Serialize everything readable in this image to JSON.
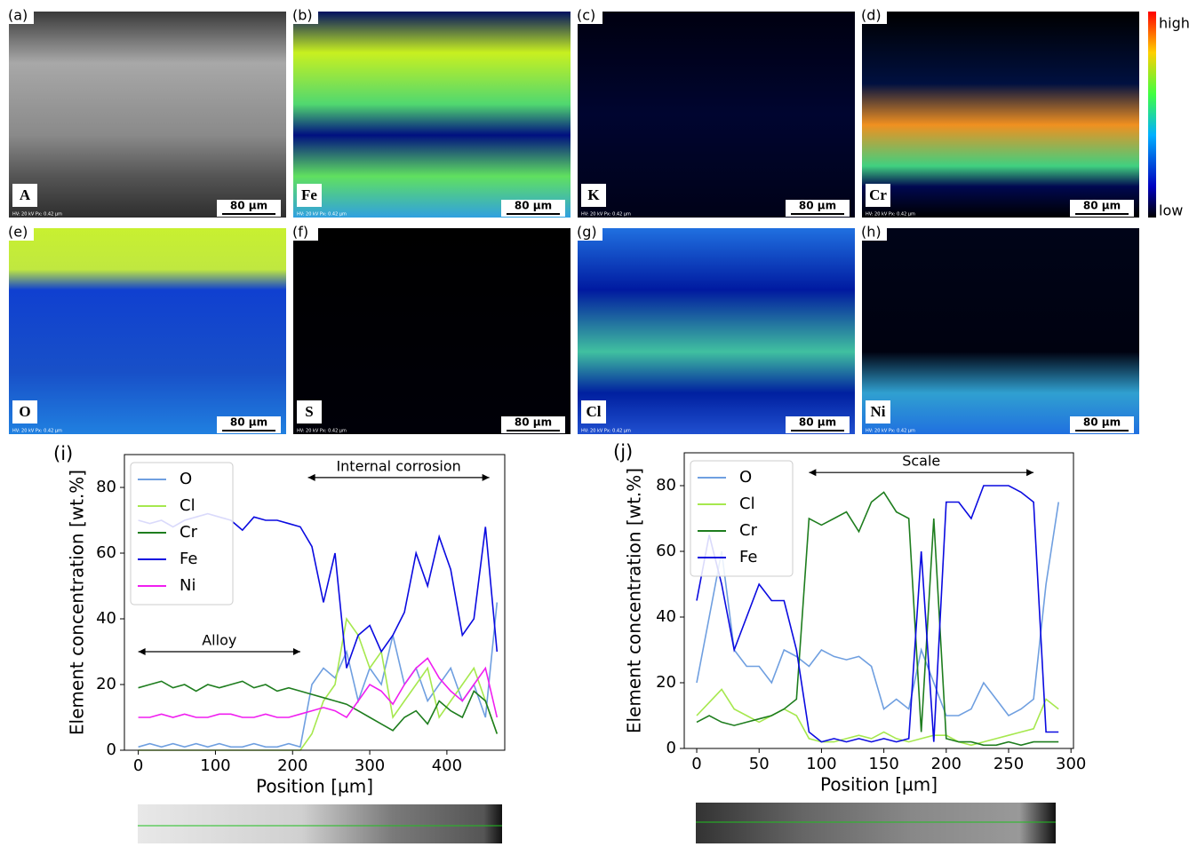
{
  "panels": [
    {
      "label": "(a)",
      "element": "A",
      "scale": "80 µm",
      "info": "HV: 20 kV   Px: 0.42 µm"
    },
    {
      "label": "(b)",
      "element": "Fe",
      "scale": "80 µm",
      "info": "HV: 20 kV   Px: 0.42 µm"
    },
    {
      "label": "(c)",
      "element": "K",
      "scale": "80 µm",
      "info": "HV: 20 kV   Px: 0.42 µm"
    },
    {
      "label": "(d)",
      "element": "Cr",
      "scale": "80 µm",
      "info": "HV: 20 kV   Px: 0.42 µm"
    },
    {
      "label": "(e)",
      "element": "O",
      "scale": "80 µm",
      "info": "HV: 20 kV   Px: 0.42 µm"
    },
    {
      "label": "(f)",
      "element": "S",
      "scale": "80 µm",
      "info": "HV: 20 kV   Px: 0.42 µm"
    },
    {
      "label": "(g)",
      "element": "Cl",
      "scale": "80 µm",
      "info": "HV: 20 kV   Px: 0.42 µm"
    },
    {
      "label": "(h)",
      "element": "Ni",
      "scale": "80 µm",
      "info": "HV: 20 kV   Px: 0.42 µm"
    }
  ],
  "colorbar": {
    "high": "high",
    "low": "low"
  },
  "chart_data": [
    {
      "type": "line",
      "panel_label": "(i)",
      "x_label": "Position [µm]",
      "y_label": "Element concentration [wt.%]",
      "x": [
        0,
        15,
        30,
        45,
        60,
        75,
        90,
        105,
        120,
        135,
        150,
        165,
        180,
        195,
        210,
        225,
        240,
        255,
        270,
        285,
        300,
        315,
        330,
        345,
        360,
        375,
        390,
        405,
        420,
        435,
        450,
        465
      ],
      "series": [
        {
          "name": "O",
          "color": "#6f9fe0",
          "values": [
            1,
            2,
            1,
            2,
            1,
            2,
            1,
            2,
            1,
            1,
            2,
            1,
            1,
            2,
            1,
            20,
            25,
            22,
            30,
            15,
            25,
            20,
            35,
            20,
            25,
            15,
            20,
            25,
            15,
            20,
            10,
            45
          ]
        },
        {
          "name": "Cl",
          "color": "#a6e84e",
          "values": [
            0,
            0,
            0,
            0,
            0,
            0,
            0,
            0,
            0,
            0,
            0,
            0,
            0,
            0,
            0,
            5,
            15,
            20,
            40,
            35,
            25,
            30,
            10,
            15,
            20,
            25,
            10,
            15,
            20,
            25,
            15,
            5
          ]
        },
        {
          "name": "Cr",
          "color": "#1e7d1e",
          "values": [
            19,
            20,
            21,
            19,
            20,
            18,
            20,
            19,
            20,
            21,
            19,
            20,
            18,
            19,
            18,
            17,
            16,
            15,
            14,
            12,
            10,
            8,
            6,
            10,
            12,
            8,
            15,
            12,
            10,
            18,
            15,
            5
          ]
        },
        {
          "name": "Fe",
          "color": "#0a0ae0",
          "values": [
            70,
            69,
            70,
            68,
            70,
            71,
            72,
            71,
            70,
            67,
            71,
            70,
            70,
            69,
            68,
            62,
            45,
            60,
            25,
            35,
            38,
            30,
            35,
            42,
            60,
            50,
            65,
            55,
            35,
            40,
            68,
            30
          ]
        },
        {
          "name": "Ni",
          "color": "#f01ef0",
          "values": [
            10,
            10,
            11,
            10,
            11,
            10,
            10,
            11,
            11,
            10,
            10,
            11,
            10,
            10,
            11,
            12,
            13,
            12,
            10,
            15,
            20,
            18,
            14,
            20,
            25,
            28,
            22,
            18,
            15,
            20,
            25,
            10
          ]
        }
      ],
      "xlim": [
        -18,
        475
      ],
      "ylim": [
        0,
        90
      ],
      "xticks": [
        0,
        100,
        200,
        300,
        400
      ],
      "yticks": [
        0,
        20,
        40,
        60,
        80
      ],
      "legend": "upper left",
      "annotations": [
        {
          "text": "Internal corrosion",
          "from": 220,
          "to": 455,
          "y": 83
        },
        {
          "text": "Alloy",
          "from": 0,
          "to": 210,
          "y": 30
        }
      ]
    },
    {
      "type": "line",
      "panel_label": "(j)",
      "x_label": "Position [µm]",
      "y_label": "Element concentration [wt.%]",
      "x": [
        0,
        10,
        20,
        30,
        40,
        50,
        60,
        70,
        80,
        90,
        100,
        110,
        120,
        130,
        140,
        150,
        160,
        170,
        180,
        190,
        200,
        210,
        220,
        230,
        240,
        250,
        260,
        270,
        280,
        290
      ],
      "series": [
        {
          "name": "O",
          "color": "#6f9fe0",
          "values": [
            20,
            40,
            60,
            30,
            25,
            25,
            20,
            30,
            28,
            25,
            30,
            28,
            27,
            28,
            25,
            12,
            15,
            12,
            30,
            20,
            10,
            10,
            12,
            20,
            15,
            10,
            12,
            15,
            50,
            75
          ]
        },
        {
          "name": "Cl",
          "color": "#a6e84e",
          "values": [
            10,
            14,
            18,
            12,
            10,
            8,
            10,
            12,
            10,
            3,
            2,
            2,
            3,
            4,
            3,
            5,
            3,
            2,
            3,
            4,
            4,
            2,
            1,
            2,
            3,
            4,
            5,
            6,
            15,
            12
          ]
        },
        {
          "name": "Cr",
          "color": "#1e7d1e",
          "values": [
            8,
            10,
            8,
            7,
            8,
            9,
            10,
            12,
            15,
            70,
            68,
            70,
            72,
            66,
            75,
            78,
            72,
            70,
            5,
            70,
            3,
            2,
            2,
            1,
            1,
            2,
            1,
            2,
            2,
            2
          ]
        },
        {
          "name": "Fe",
          "color": "#0a0ae0",
          "values": [
            45,
            65,
            50,
            30,
            40,
            50,
            45,
            45,
            30,
            5,
            2,
            3,
            2,
            3,
            2,
            3,
            2,
            3,
            60,
            2,
            75,
            75,
            70,
            80,
            80,
            80,
            78,
            75,
            5,
            5
          ]
        }
      ],
      "xlim": [
        -10,
        302
      ],
      "ylim": [
        0,
        90
      ],
      "xticks": [
        0,
        50,
        100,
        150,
        200,
        250,
        300
      ],
      "yticks": [
        0,
        20,
        40,
        60,
        80
      ],
      "legend": "upper left",
      "annotations": [
        {
          "text": "Scale",
          "from": 90,
          "to": 270,
          "y": 84
        }
      ]
    }
  ]
}
